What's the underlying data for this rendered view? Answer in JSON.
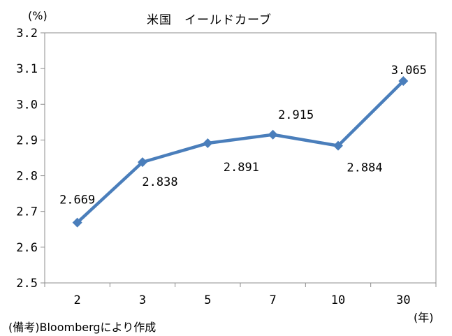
{
  "chart_data": {
    "type": "line",
    "title": "米国　イールドカーブ",
    "ylabel": "(%)",
    "xlabel": "(年)",
    "categories": [
      "2",
      "3",
      "5",
      "7",
      "10",
      "30"
    ],
    "series": [
      {
        "values": [
          2.669,
          2.838,
          2.891,
          2.915,
          2.884,
          3.065
        ]
      }
    ],
    "data_labels": [
      "2.669",
      "2.838",
      "2.891",
      "2.915",
      "2.884",
      "3.065"
    ],
    "ylim": [
      2.5,
      3.2
    ],
    "yticks": [
      "2.5",
      "2.6",
      "2.7",
      "2.8",
      "2.9",
      "3.0",
      "3.1",
      "3.2"
    ],
    "grid": false,
    "legend": "none",
    "line_color": "#4a7ebb"
  },
  "source_note": "(備考)Bloombergにより作成"
}
